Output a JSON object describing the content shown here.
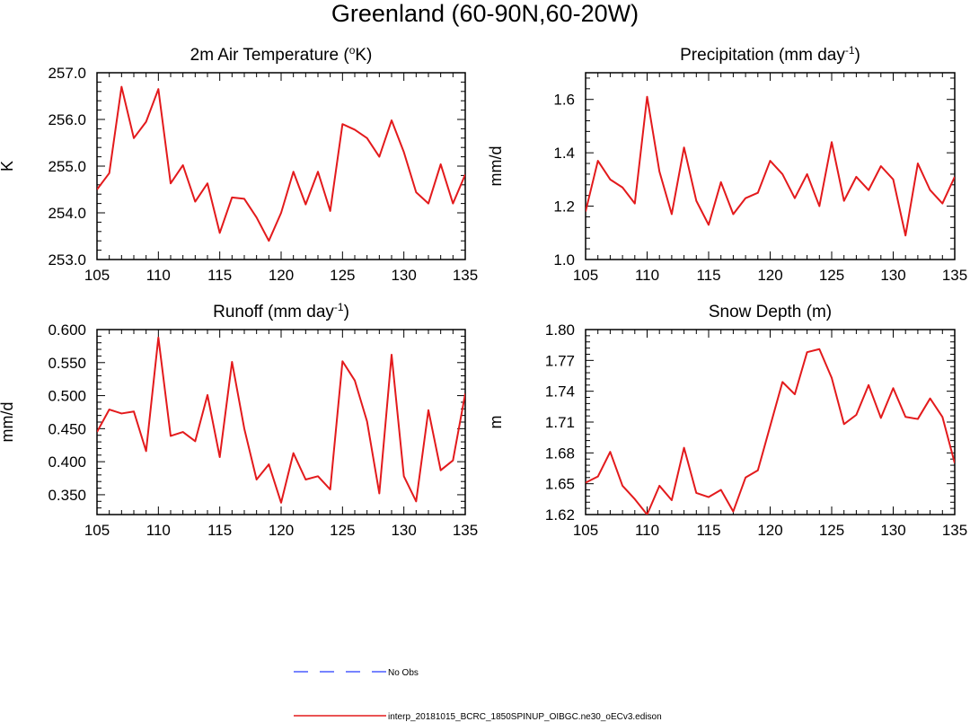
{
  "figure": {
    "title": "Greenland (60-90N,60-20W)"
  },
  "legend": {
    "entries": [
      {
        "label": "No Obs",
        "color": "#4a5cff",
        "style": "dashed"
      },
      {
        "label": "interp_20181015_BCRC_1850SPINUP_OIBGC.ne30_oECv3.edison",
        "color": "#e31a1c",
        "style": "solid"
      }
    ]
  },
  "chart_data": [
    {
      "type": "line",
      "title": "2m Air Temperature (",
      "title_sup": "o",
      "title_post": "K)",
      "ylabel": "K",
      "xlim": [
        105,
        135
      ],
      "ylim": [
        253.0,
        257.0
      ],
      "xticks": [
        "105",
        "110",
        "115",
        "120",
        "125",
        "130",
        "135"
      ],
      "yticks": [
        "253.0",
        "254.0",
        "255.0",
        "256.0",
        "257.0"
      ],
      "series": [
        {
          "color": "#e31a1c",
          "x": [
            105,
            106,
            107,
            108,
            109,
            110,
            111,
            112,
            113,
            114,
            115,
            116,
            117,
            118,
            119,
            120,
            121,
            122,
            123,
            124,
            125,
            126,
            127,
            128,
            129,
            130,
            131,
            132,
            133,
            134,
            135
          ],
          "y": [
            254.5,
            254.85,
            256.7,
            255.6,
            255.95,
            256.65,
            254.63,
            255.02,
            254.24,
            254.63,
            253.57,
            254.33,
            254.3,
            253.9,
            253.4,
            254.0,
            254.88,
            254.18,
            254.88,
            254.04,
            255.9,
            255.78,
            255.6,
            255.2,
            255.98,
            255.3,
            254.44,
            254.2,
            255.04,
            254.2,
            254.82
          ]
        }
      ]
    },
    {
      "type": "line",
      "title": "Precipitation (mm day",
      "title_sup": "-1",
      "title_post": ")",
      "ylabel": "mm/d",
      "xlim": [
        105,
        135
      ],
      "ylim": [
        1.0,
        1.7
      ],
      "xticks": [
        "105",
        "110",
        "115",
        "120",
        "125",
        "130",
        "135"
      ],
      "yticks": [
        "1.0",
        "1.2",
        "1.4",
        "1.6"
      ],
      "series": [
        {
          "color": "#e31a1c",
          "x": [
            105,
            106,
            107,
            108,
            109,
            110,
            111,
            112,
            113,
            114,
            115,
            116,
            117,
            118,
            119,
            120,
            121,
            122,
            123,
            124,
            125,
            126,
            127,
            128,
            129,
            130,
            131,
            132,
            133,
            134,
            135
          ],
          "y": [
            1.18,
            1.37,
            1.3,
            1.27,
            1.21,
            1.61,
            1.33,
            1.17,
            1.42,
            1.22,
            1.13,
            1.29,
            1.17,
            1.23,
            1.25,
            1.37,
            1.32,
            1.23,
            1.32,
            1.2,
            1.44,
            1.22,
            1.31,
            1.26,
            1.35,
            1.3,
            1.09,
            1.36,
            1.26,
            1.21,
            1.31
          ]
        }
      ]
    },
    {
      "type": "line",
      "title": "Runoff (mm day",
      "title_sup": "-1",
      "title_post": ")",
      "ylabel": "mm/d",
      "xlim": [
        105,
        135
      ],
      "ylim": [
        0.32,
        0.6
      ],
      "xticks": [
        "105",
        "110",
        "115",
        "120",
        "125",
        "130",
        "135"
      ],
      "yticks": [
        "0.350",
        "0.400",
        "0.450",
        "0.500",
        "0.550",
        "0.600"
      ],
      "series": [
        {
          "color": "#e31a1c",
          "x": [
            105,
            106,
            107,
            108,
            109,
            110,
            111,
            112,
            113,
            114,
            115,
            116,
            117,
            118,
            119,
            120,
            121,
            122,
            123,
            124,
            125,
            126,
            127,
            128,
            129,
            130,
            131,
            132,
            133,
            134,
            135
          ],
          "y": [
            0.445,
            0.479,
            0.473,
            0.476,
            0.416,
            0.588,
            0.439,
            0.445,
            0.431,
            0.501,
            0.407,
            0.551,
            0.45,
            0.373,
            0.396,
            0.338,
            0.413,
            0.373,
            0.378,
            0.358,
            0.552,
            0.523,
            0.461,
            0.352,
            0.562,
            0.378,
            0.34,
            0.478,
            0.387,
            0.402,
            0.503
          ]
        }
      ]
    },
    {
      "type": "line",
      "title": "Snow Depth (m)",
      "title_sup": "",
      "title_post": "",
      "ylabel": "m",
      "xlim": [
        105,
        135
      ],
      "ylim": [
        1.62,
        1.8
      ],
      "xticks": [
        "105",
        "110",
        "115",
        "120",
        "125",
        "130",
        "135"
      ],
      "yticks": [
        "1.62",
        "1.65",
        "1.68",
        "1.71",
        "1.74",
        "1.77",
        "1.80"
      ],
      "series": [
        {
          "color": "#e31a1c",
          "x": [
            105,
            106,
            107,
            108,
            109,
            110,
            111,
            112,
            113,
            114,
            115,
            116,
            117,
            118,
            119,
            120,
            121,
            122,
            123,
            124,
            125,
            126,
            127,
            128,
            129,
            130,
            131,
            132,
            133,
            134,
            135
          ],
          "y": [
            1.651,
            1.657,
            1.681,
            1.648,
            1.635,
            1.62,
            1.648,
            1.634,
            1.685,
            1.641,
            1.637,
            1.644,
            1.623,
            1.656,
            1.663,
            1.706,
            1.749,
            1.737,
            1.778,
            1.781,
            1.753,
            1.708,
            1.717,
            1.746,
            1.714,
            1.743,
            1.715,
            1.713,
            1.733,
            1.715,
            1.67
          ]
        }
      ]
    }
  ]
}
